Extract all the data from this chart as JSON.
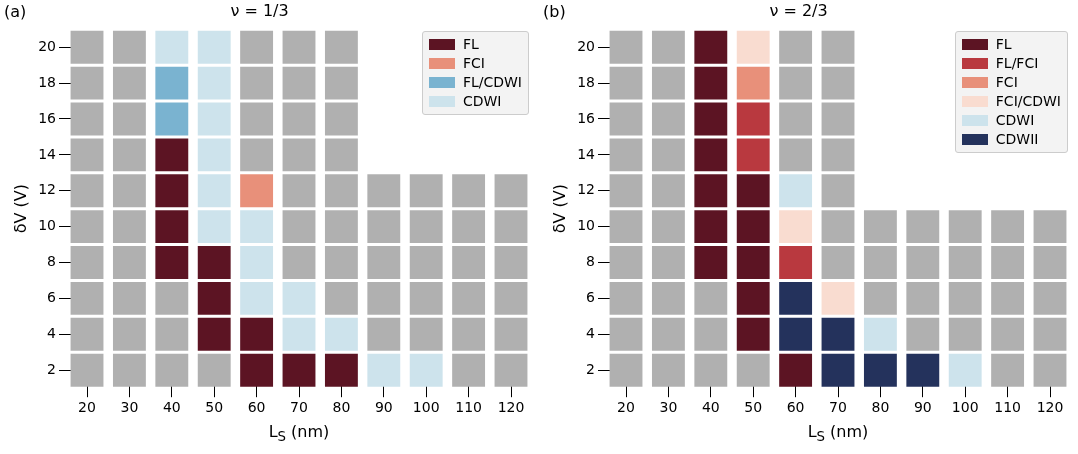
{
  "chart_data": [
    {
      "type": "scatter",
      "title": "ν = 1/3",
      "xlabel": "L$_{S}$ (nm)",
      "ylabel": "δV (V)",
      "annotations": [
        "(a)"
      ],
      "legend": "top right",
      "marker": "square",
      "xlim": [
        20,
        120
      ],
      "xticks": [
        20,
        30,
        40,
        50,
        60,
        70,
        80,
        90,
        100,
        110,
        120
      ],
      "ylim": [
        2,
        20
      ],
      "yticks": [
        2,
        4,
        6,
        8,
        10,
        12,
        14,
        16,
        18,
        20
      ],
      "series": [
        {
          "name": "FL",
          "color": "#5c1423",
          "x": [
            40,
            40,
            40,
            40,
            50,
            50,
            50,
            60,
            60,
            70,
            80
          ],
          "values": [
            14,
            12,
            10,
            8,
            8,
            6,
            4,
            4,
            2,
            2,
            2
          ]
        },
        {
          "name": "FCI",
          "color": "#e8907a",
          "x": [
            60
          ],
          "values": [
            12
          ]
        },
        {
          "name": "FL/CDWI",
          "color": "#7ab3d0",
          "x": [
            40,
            40
          ],
          "values": [
            18,
            16
          ]
        },
        {
          "name": "CDWI",
          "color": "#cde3ec",
          "x": [
            40,
            50,
            50,
            50,
            50,
            50,
            50,
            60,
            60,
            60,
            70,
            70,
            80,
            90,
            100
          ],
          "values": [
            20,
            20,
            18,
            16,
            14,
            12,
            10,
            10,
            8,
            6,
            6,
            4,
            4,
            2,
            2
          ]
        },
        {
          "color": "#b0b0b0",
          "x": [
            20,
            30,
            60,
            70,
            80,
            20,
            30,
            60,
            70,
            80,
            20,
            30,
            60,
            70,
            80,
            20,
            30,
            60,
            70,
            80,
            20,
            30,
            70,
            80,
            90,
            100,
            110,
            120,
            20,
            30,
            70,
            80,
            90,
            100,
            110,
            120,
            20,
            30,
            70,
            80,
            90,
            100,
            110,
            120,
            20,
            30,
            40,
            80,
            90,
            100,
            110,
            120,
            20,
            30,
            40,
            90,
            100,
            110,
            120,
            20,
            30,
            40,
            50,
            110,
            120
          ],
          "values": [
            20,
            20,
            20,
            20,
            20,
            18,
            18,
            18,
            18,
            18,
            16,
            16,
            16,
            16,
            16,
            14,
            14,
            14,
            14,
            14,
            12,
            12,
            12,
            12,
            12,
            12,
            12,
            12,
            10,
            10,
            10,
            10,
            10,
            10,
            10,
            10,
            8,
            8,
            8,
            8,
            8,
            8,
            8,
            8,
            6,
            6,
            6,
            6,
            6,
            6,
            6,
            6,
            4,
            4,
            4,
            4,
            4,
            4,
            4,
            2,
            2,
            2,
            2,
            2,
            2
          ]
        }
      ]
    },
    {
      "type": "scatter",
      "title": "ν = 2/3",
      "xlabel": "L$_{S}$ (nm)",
      "ylabel": "δV (V)",
      "annotations": [
        "(b)"
      ],
      "legend": "top right",
      "marker": "square",
      "xlim": [
        20,
        120
      ],
      "xticks": [
        20,
        30,
        40,
        50,
        60,
        70,
        80,
        90,
        100,
        110,
        120
      ],
      "ylim": [
        2,
        20
      ],
      "yticks": [
        2,
        4,
        6,
        8,
        10,
        12,
        14,
        16,
        18,
        20
      ],
      "series": [
        {
          "name": "FL",
          "color": "#5c1423",
          "x": [
            40,
            40,
            40,
            40,
            40,
            40,
            40,
            50,
            50,
            50,
            50,
            50,
            60
          ],
          "values": [
            20,
            18,
            16,
            14,
            12,
            10,
            8,
            12,
            10,
            8,
            6,
            4,
            2
          ]
        },
        {
          "name": "FL/FCI",
          "color": "#b9393f",
          "x": [
            50,
            50,
            60
          ],
          "values": [
            16,
            14,
            8
          ]
        },
        {
          "name": "FCI",
          "color": "#e8907a",
          "x": [
            50
          ],
          "values": [
            18
          ]
        },
        {
          "name": "FCI/CDWI",
          "color": "#f9dcd0",
          "x": [
            50,
            60,
            70
          ],
          "values": [
            20,
            10,
            6
          ]
        },
        {
          "name": "CDWI",
          "color": "#cde3ec",
          "x": [
            60,
            80,
            100
          ],
          "values": [
            12,
            4,
            2
          ]
        },
        {
          "name": "CDWII",
          "color": "#24325c",
          "x": [
            60,
            60,
            70,
            70,
            80,
            90
          ],
          "values": [
            6,
            4,
            4,
            2,
            2,
            2
          ]
        },
        {
          "color": "#b0b0b0",
          "x": [
            20,
            30,
            60,
            70,
            20,
            30,
            60,
            70,
            20,
            30,
            60,
            70,
            20,
            30,
            60,
            70,
            20,
            30,
            70,
            20,
            30,
            70,
            80,
            90,
            100,
            110,
            120,
            20,
            30,
            70,
            80,
            90,
            100,
            110,
            120,
            20,
            30,
            40,
            80,
            90,
            100,
            110,
            120,
            20,
            30,
            40,
            90,
            100,
            110,
            120,
            20,
            30,
            40,
            50,
            110,
            120
          ],
          "values": [
            20,
            20,
            20,
            20,
            18,
            18,
            18,
            18,
            16,
            16,
            16,
            16,
            14,
            14,
            14,
            14,
            12,
            12,
            12,
            10,
            10,
            10,
            10,
            10,
            10,
            10,
            10,
            8,
            8,
            8,
            8,
            8,
            8,
            8,
            8,
            6,
            6,
            6,
            6,
            6,
            6,
            6,
            6,
            4,
            4,
            4,
            4,
            4,
            4,
            4,
            2,
            2,
            2,
            2,
            2,
            2
          ]
        }
      ]
    }
  ]
}
